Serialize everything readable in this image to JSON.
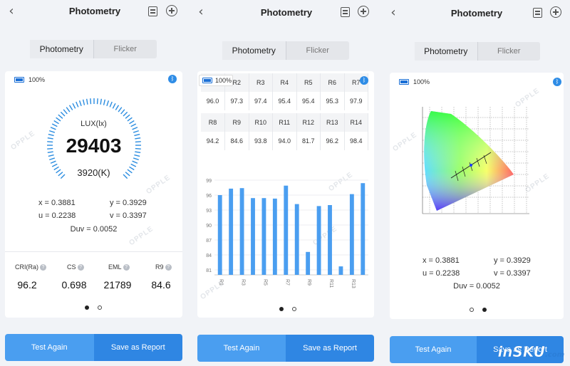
{
  "title": "Photometry",
  "tabs": [
    "Photometry",
    "Flicker"
  ],
  "battery": "100%",
  "watermark": "OPPLE",
  "p1": {
    "lux_label": "LUX(lx)",
    "lux_value": "29403",
    "cct": "3920(K)",
    "x": "x = 0.3881",
    "y": "y = 0.3929",
    "u": "u = 0.2238",
    "v": "v = 0.3397",
    "duv": "Duv = 0.0052",
    "metrics": [
      {
        "label": "CRI(Ra)",
        "value": "96.2"
      },
      {
        "label": "CS",
        "value": "0.698"
      },
      {
        "label": "EML",
        "value": "21789"
      },
      {
        "label": "R9",
        "value": "84.6"
      }
    ],
    "page": 1,
    "page_count": 2
  },
  "p2": {
    "rows": [
      {
        "heads": [
          "R1",
          "R2",
          "R3",
          "R4",
          "R5",
          "R6",
          "R7"
        ],
        "vals": [
          "96.0",
          "97.3",
          "97.4",
          "95.4",
          "95.4",
          "95.3",
          "97.9"
        ]
      },
      {
        "heads": [
          "R8",
          "R9",
          "R10",
          "R11",
          "R12",
          "R13",
          "R14"
        ],
        "vals": [
          "94.2",
          "84.6",
          "93.8",
          "94.0",
          "81.7",
          "96.2",
          "98.4"
        ]
      }
    ],
    "page": 1,
    "page_count": 2
  },
  "chart_data": {
    "type": "bar",
    "categories": [
      "R1",
      "R2",
      "R3",
      "R4",
      "R5",
      "R6",
      "R7",
      "R8",
      "R9",
      "R10",
      "R11",
      "R12",
      "R13",
      "R14"
    ],
    "x_tick_labels": [
      "R1",
      "R3",
      "R5",
      "R7",
      "R9",
      "R11",
      "R13"
    ],
    "values": [
      96.0,
      97.3,
      97.4,
      95.4,
      95.4,
      95.3,
      97.9,
      94.2,
      84.6,
      93.8,
      94.0,
      81.7,
      96.2,
      98.4
    ],
    "ylim": [
      80,
      100
    ],
    "yticks": [
      "99",
      "96",
      "93",
      "90",
      "87",
      "84",
      "81"
    ],
    "bar_color": "#4a9ef0",
    "grid": true
  },
  "p3": {
    "x": "x = 0.3881",
    "y": "y = 0.3929",
    "u": "u = 0.2238",
    "v": "v = 0.3397",
    "duv": "Duv = 0.0052",
    "page": 2,
    "page_count": 2
  },
  "buttons": {
    "test_again": "Test Again",
    "save_report": "Save as Report"
  },
  "brand_watermark": {
    "main": "inSKU",
    "suffix": ".com"
  },
  "colors": {
    "accent": "#2f86e3",
    "accent_light": "#4a9ef0",
    "gauge": "#2a8ce0"
  }
}
